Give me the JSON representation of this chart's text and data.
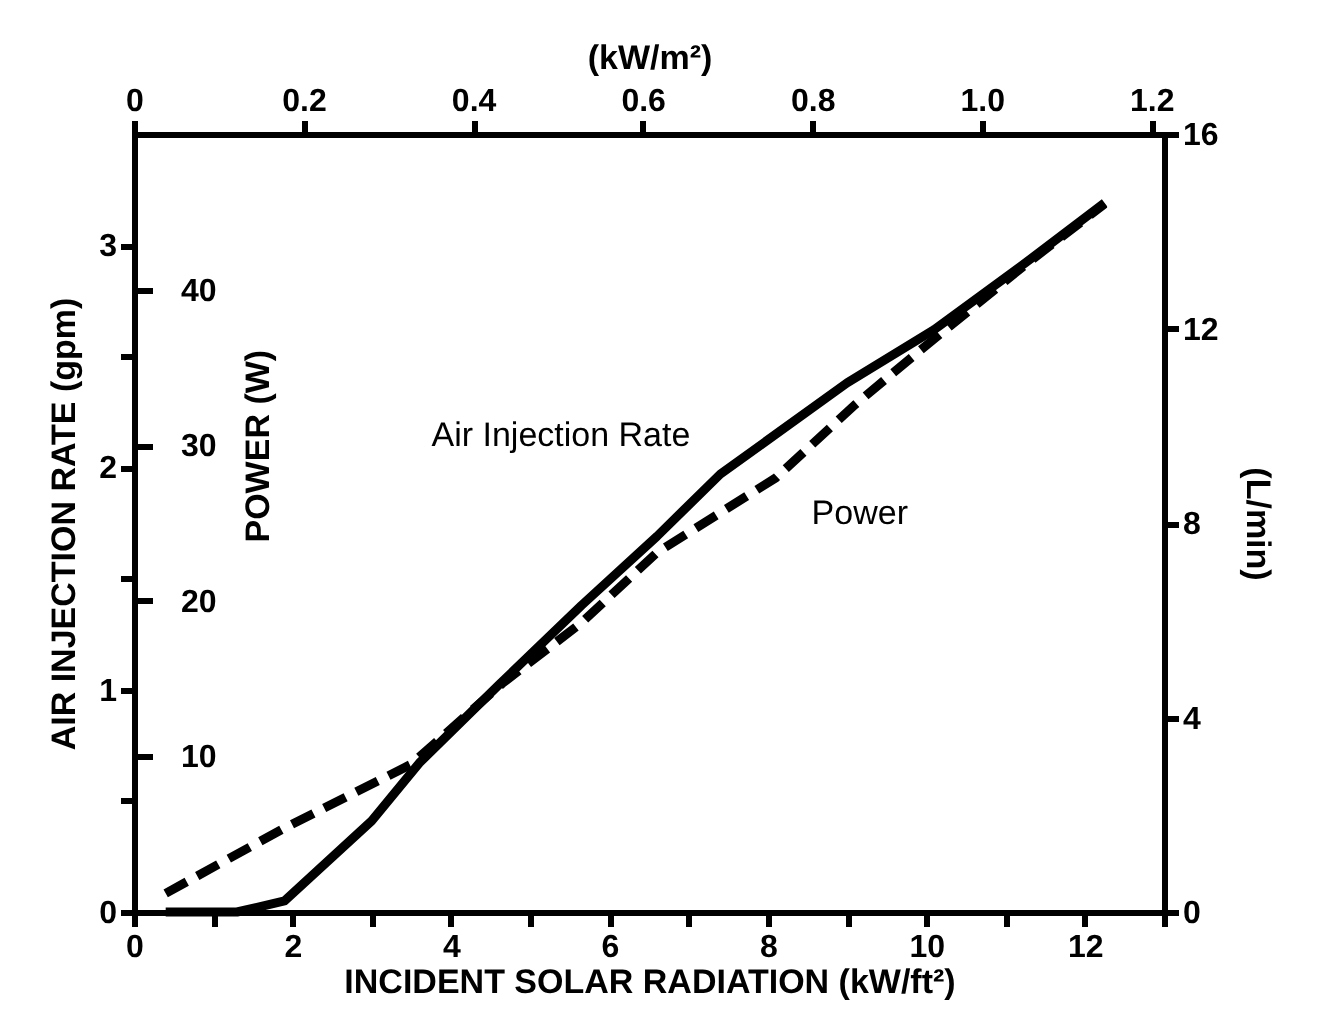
{
  "chart_data": {
    "type": "line",
    "xlabel": "INCIDENT SOLAR RADIATION (kW/ft²)",
    "ylabel": "AIR INJECTION RATE (gpm)",
    "y2label": "(L/min)",
    "y3label": "POWER (W)",
    "x2label": "(kW/m²)",
    "xlim": [
      0,
      13
    ],
    "xticks": [
      0,
      {
        "value": 1,
        "label": null
      },
      2,
      {
        "value": 3,
        "label": null
      },
      4,
      {
        "value": 5,
        "label": null
      },
      6,
      {
        "value": 7,
        "label": null
      },
      8,
      {
        "value": 9,
        "label": null
      },
      10,
      {
        "value": 11,
        "label": null
      },
      12,
      {
        "value": 13,
        "label": null
      }
    ],
    "ylim": [
      0,
      3.5
    ],
    "yticks": [
      0,
      {
        "value": 0.5,
        "label": null
      },
      1,
      {
        "value": 1.5,
        "label": null
      },
      2,
      {
        "value": 2.5,
        "label": null
      },
      3
    ],
    "y2lim": [
      0,
      16
    ],
    "y2ticks": [
      0,
      4,
      8,
      12,
      16
    ],
    "y3lim": [
      0,
      50
    ],
    "y3ticks": [
      10,
      20,
      30,
      40
    ],
    "x2lim": [
      0,
      1.215
    ],
    "x2ticks": [
      0,
      0.2,
      0.4,
      0.6,
      0.8,
      {
        "value": 1,
        "label": "1.0"
      },
      1.2
    ],
    "grid": false,
    "marker": "none",
    "series": [
      {
        "name": "Air Injection Rate",
        "color": "#000000",
        "line_style": "solid",
        "x": [
          0.4,
          1.3,
          1.9,
          3.0,
          3.6,
          4.6,
          5.65,
          6.6,
          7.4,
          9.0,
          10.1,
          11.25,
          12.25
        ],
        "values": [
          0,
          0,
          0.05,
          0.41,
          0.67,
          1.02,
          1.38,
          1.69,
          1.97,
          2.38,
          2.62,
          2.92,
          3.19
        ]
      },
      {
        "name": "Power",
        "color": "#000000",
        "line_style": "dashed",
        "axis": "y3",
        "x": [
          0.4,
          1.9,
          3.5,
          4.65,
          5.65,
          6.6,
          8.1,
          9.1,
          9.9,
          11.25,
          12.25
        ],
        "values": [
          1.2,
          5.4,
          9.5,
          14.7,
          18.6,
          23.1,
          27.9,
          32.6,
          36.0,
          41.6,
          45.5
        ]
      }
    ]
  }
}
